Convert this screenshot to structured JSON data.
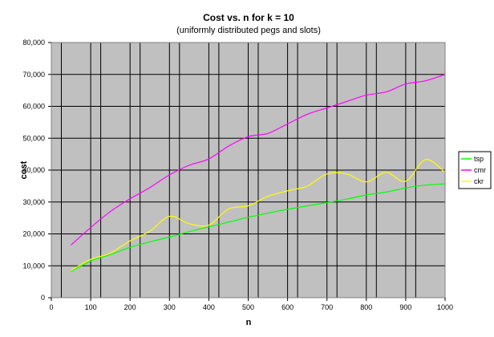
{
  "chart_data": {
    "type": "line",
    "title": "Cost vs. n for k = 10",
    "subtitle": "(uniformly distributed pegs and slots)",
    "xlabel": "n",
    "ylabel": "cost",
    "xlim": [
      0,
      1000
    ],
    "ylim": [
      0,
      80000
    ],
    "x_ticks": [
      0,
      100,
      200,
      300,
      400,
      500,
      600,
      700,
      800,
      900,
      1000
    ],
    "y_ticks": [
      0,
      10000,
      20000,
      30000,
      40000,
      50000,
      60000,
      70000,
      80000
    ],
    "x_tick_labels": [
      "0",
      "100",
      "200",
      "300",
      "400",
      "500",
      "600",
      "700",
      "800",
      "900",
      "1000"
    ],
    "y_tick_labels": [
      "0",
      "10,000",
      "20,000",
      "30,000",
      "40,000",
      "50,000",
      "60,000",
      "70,000",
      "80,000"
    ],
    "grid": true,
    "plot_background": "#c0c0c0",
    "legend_placement": "right",
    "x": [
      50,
      100,
      150,
      200,
      250,
      300,
      350,
      400,
      450,
      500,
      550,
      600,
      650,
      700,
      750,
      800,
      850,
      900,
      950,
      1000
    ],
    "series": [
      {
        "name": "tsp",
        "color": "#00ff00",
        "values": [
          8200,
          11500,
          13500,
          15800,
          17500,
          19000,
          20700,
          22200,
          23700,
          25200,
          26500,
          27700,
          28800,
          29800,
          30900,
          32200,
          33100,
          34400,
          35300,
          35700
        ]
      },
      {
        "name": "cmr",
        "color": "#ff00ff",
        "values": [
          16500,
          22000,
          27000,
          31000,
          34500,
          38500,
          41500,
          43500,
          47500,
          50500,
          51500,
          54500,
          57500,
          59500,
          61500,
          63500,
          64500,
          67000,
          68000,
          70000
        ]
      },
      {
        "name": "ckr",
        "color": "#ffff00",
        "values": [
          8500,
          12000,
          14000,
          17800,
          20800,
          25500,
          23200,
          22800,
          27800,
          28800,
          31800,
          33500,
          35000,
          38800,
          38800,
          36300,
          39300,
          36500,
          43300,
          39300
        ]
      }
    ]
  }
}
